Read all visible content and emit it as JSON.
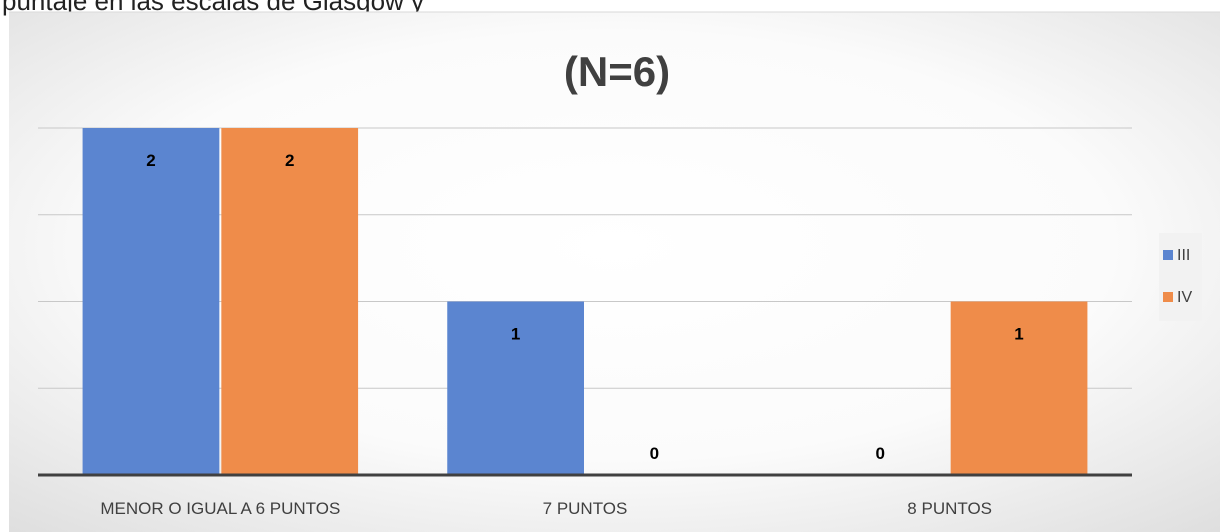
{
  "page": {
    "top_text": "puntaje en las escalas de Glasgow y"
  },
  "chart_data": {
    "type": "bar",
    "title": "(N=6)",
    "categories": [
      "MENOR O IGUAL A 6 PUNTOS",
      "7 PUNTOS",
      "8 PUNTOS"
    ],
    "series": [
      {
        "name": "III",
        "values": [
          2,
          1,
          0
        ],
        "color": "#5b85d0"
      },
      {
        "name": "IV",
        "values": [
          2,
          0,
          1
        ],
        "color": "#ef8c4a"
      }
    ],
    "ylim": [
      0,
      2
    ],
    "y_gridline_step": 0.5,
    "show_data_labels": true,
    "grid": true,
    "legend_position": "right",
    "background": "radial gradient white to light gray"
  }
}
